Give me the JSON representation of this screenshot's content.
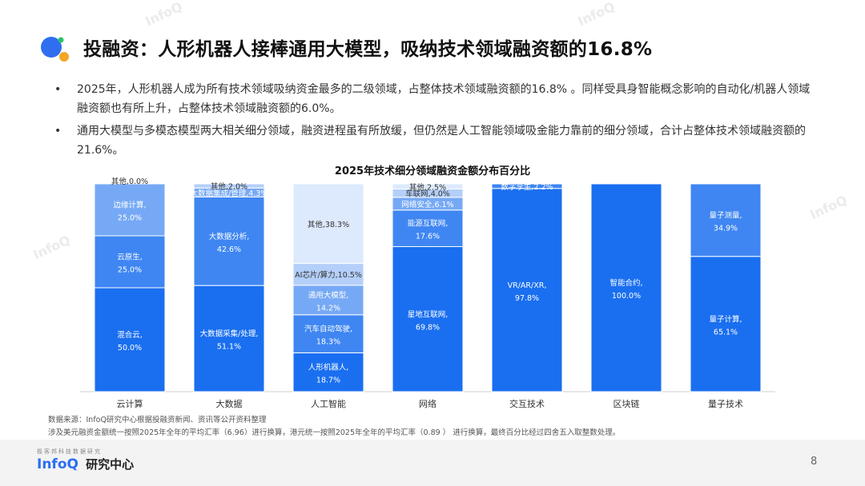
{
  "title": "投融资：人形机器人接棒通用大模型，吸纳技术领域融资额的16.8%",
  "bullets": [
    "2025年，人形机器人成为所有技术领域吸纳资金最多的二级领域，占整体技术领域融资额的16.8% 。同样受具身智能概念影响的自动化/机器人领域融资额也有所上升，占整体技术领域融资额的6.0%。",
    "通用大模型与多模态模型两大相关细分领域，融资进程虽有所放缓，但仍然是人工智能领域吸金能力靠前的细分领域，合计占整体技术领域融资额的21.6%。"
  ],
  "bullet_symbol": "•",
  "watermark_text": "InfoQ",
  "chart_data": {
    "type": "bar",
    "stacked": true,
    "percent": true,
    "title": "2025年技术细分领域融资金额分布百分比",
    "ylim": [
      0,
      100
    ],
    "grid": false,
    "legend": "none",
    "categories": [
      {
        "name": "云计算",
        "segments": [
          {
            "label": "混合云,50.0%",
            "value": 50.0
          },
          {
            "label": "云原生,25.0%",
            "value": 25.0
          },
          {
            "label": "边缘计算,25.0%",
            "value": 25.0
          },
          {
            "label": "其他,0.0%",
            "value": 0.0
          }
        ]
      },
      {
        "name": "大数据",
        "segments": [
          {
            "label": "大数据采集/处理,51.1%",
            "value": 51.1
          },
          {
            "label": "大数据分析,42.6%",
            "value": 42.6
          },
          {
            "label": "大数据集成/管理,4.3%",
            "value": 4.3
          },
          {
            "label": "其他,2.0%",
            "value": 2.0
          }
        ]
      },
      {
        "name": "人工智能",
        "segments": [
          {
            "label": "人形机器人,18.7%",
            "value": 18.7
          },
          {
            "label": "汽车自动驾驶,18.3%",
            "value": 18.3
          },
          {
            "label": "通用大模型,14.2%",
            "value": 14.2
          },
          {
            "label": "AI芯片/算力,10.5%",
            "value": 10.5
          },
          {
            "label": "其他,38.3%",
            "value": 38.3
          }
        ]
      },
      {
        "name": "网络",
        "segments": [
          {
            "label": "星地互联网,69.8%",
            "value": 69.8
          },
          {
            "label": "能源互联网,17.6%",
            "value": 17.6
          },
          {
            "label": "网络安全,6.1%",
            "value": 6.1
          },
          {
            "label": "车联网,4.0%",
            "value": 4.0
          },
          {
            "label": "其他,2.5%",
            "value": 2.5
          }
        ]
      },
      {
        "name": "交互技术",
        "segments": [
          {
            "label": "VR/AR/XR,97.8%",
            "value": 97.8
          },
          {
            "label": "数字孪生,2.2%",
            "value": 2.2
          }
        ]
      },
      {
        "name": "区块链",
        "segments": [
          {
            "label": "智能合约,100.0%",
            "value": 100.0
          }
        ]
      },
      {
        "name": "量子技术",
        "segments": [
          {
            "label": "量子计算,65.1%",
            "value": 65.1
          },
          {
            "label": "量子测量,34.9%",
            "value": 34.9
          }
        ]
      }
    ]
  },
  "colors": {
    "title_dot_blue": "#2f6fef",
    "title_dot_orange": "#f5a623",
    "title_dot_green": "#27c36b",
    "segment_shades": [
      "#1a6ff0",
      "#3f86f2",
      "#76a9f5",
      "#b4cff9",
      "#dde9fc"
    ],
    "segment_text_dark": "#ffffff",
    "segment_text_light": "#333333"
  },
  "footnotes": [
    "数据来源：InfoQ研究中心根据投融资新闻、资讯等公开资料整理",
    "涉及美元融资金额统一按照2025年全年的平均汇率（6.96）进行换算，港元统一按照2025年全年的平均汇率（0.89 ） 进行换算，最终百分比经过四舍五入取整数处理。"
  ],
  "footer": {
    "tagline": "极客邦科技数据研究",
    "brand": "InfoQ",
    "brand_cn": "研究中心",
    "page_number": "8"
  }
}
